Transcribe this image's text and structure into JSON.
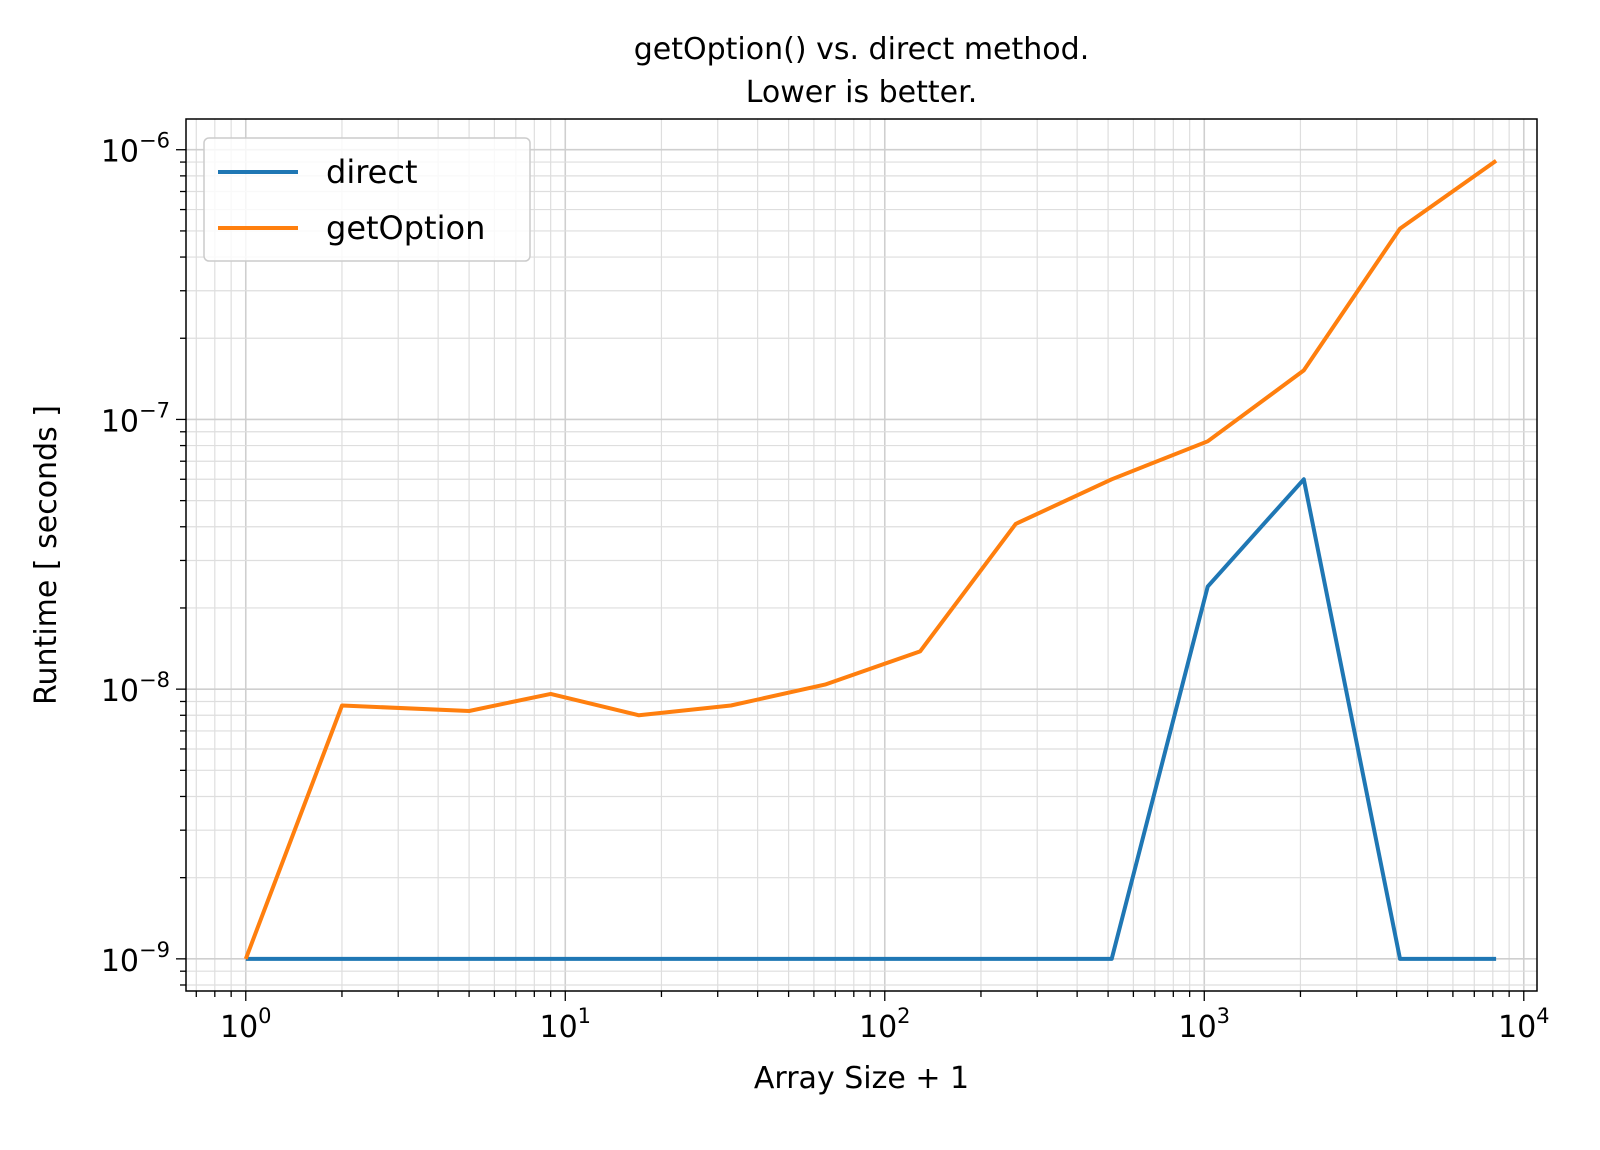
{
  "chart_data": {
    "type": "line",
    "title": [
      "getOption() vs. direct method.",
      "Lower is better."
    ],
    "xlabel": "Array Size + 1",
    "ylabel": "Runtime [ seconds ]",
    "xscale": "log",
    "yscale": "log",
    "xlim": [
      0.65,
      11000
    ],
    "ylim": [
      7.6e-10,
      1.3e-06
    ],
    "grid": "major and minor",
    "legend": "top-left",
    "x_ticks": [
      {
        "value": 1,
        "base": "10",
        "exp": "0"
      },
      {
        "value": 10,
        "base": "10",
        "exp": "1"
      },
      {
        "value": 100,
        "base": "10",
        "exp": "2"
      },
      {
        "value": 1000,
        "base": "10",
        "exp": "3"
      },
      {
        "value": 10000,
        "base": "10",
        "exp": "4"
      }
    ],
    "y_ticks": [
      {
        "value": 1e-09,
        "base": "10",
        "exp": "−9"
      },
      {
        "value": 1e-08,
        "base": "10",
        "exp": "−8"
      },
      {
        "value": 1e-07,
        "base": "10",
        "exp": "−7"
      },
      {
        "value": 1e-06,
        "base": "10",
        "exp": "−6"
      }
    ],
    "series": [
      {
        "name": "direct",
        "color": "#1f77b4",
        "x": [
          1,
          2,
          5,
          9,
          17,
          33,
          65,
          129,
          257,
          513,
          1025,
          2049,
          4097,
          8193
        ],
        "y": [
          1e-09,
          1e-09,
          1e-09,
          1e-09,
          1e-09,
          1e-09,
          1e-09,
          1e-09,
          1e-09,
          1e-09,
          2.4e-08,
          6e-08,
          1e-09,
          1e-09
        ]
      },
      {
        "name": "getOption",
        "color": "#ff7f0e",
        "x": [
          1,
          2,
          5,
          9,
          17,
          33,
          65,
          129,
          257,
          513,
          1025,
          2049,
          4097,
          8193
        ],
        "y": [
          1e-09,
          8.7e-09,
          8.3e-09,
          9.6e-09,
          8e-09,
          8.7e-09,
          1.04e-08,
          1.38e-08,
          4.1e-08,
          6e-08,
          8.3e-08,
          1.52e-07,
          5.1e-07,
          9.1e-07
        ]
      }
    ]
  }
}
